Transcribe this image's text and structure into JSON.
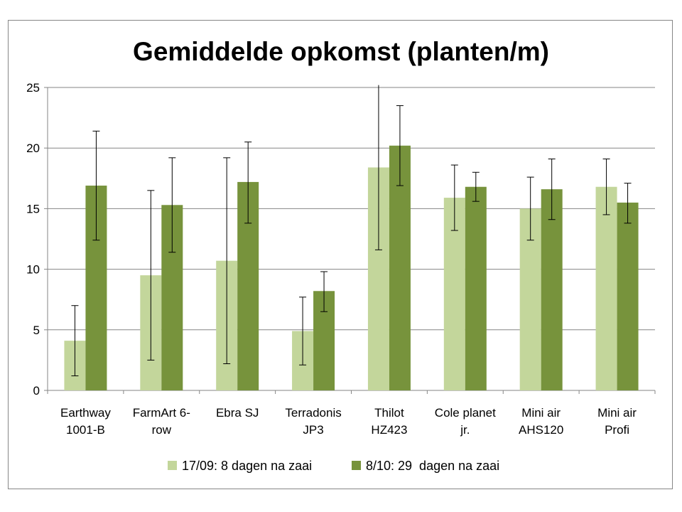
{
  "chart_data": {
    "type": "bar",
    "title": "Gemiddelde opkomst (planten/m)",
    "xlabel": "",
    "ylabel": "",
    "ylim": [
      0,
      25
    ],
    "yticks": [
      "0",
      "5",
      "10",
      "15",
      "20",
      "25"
    ],
    "ytick_values": [
      0,
      5,
      10,
      15,
      20,
      25
    ],
    "grid": true,
    "legend_position": "bottom",
    "categories": [
      [
        "Earthway",
        "1001-B"
      ],
      [
        "FarmArt 6-",
        "row"
      ],
      [
        "Ebra SJ"
      ],
      [
        "Terradonis",
        "JP3"
      ],
      [
        "Thilot",
        "HZ423"
      ],
      [
        "Cole planet",
        "jr."
      ],
      [
        "Mini air",
        "AHS120"
      ],
      [
        "Mini air",
        "Profi"
      ]
    ],
    "series": [
      {
        "name": "17/09: 8 dagen na zaai",
        "color": "#c3d69b",
        "values": [
          4.1,
          9.5,
          10.7,
          4.9,
          18.4,
          15.9,
          15.0,
          16.8
        ],
        "error_low": [
          1.2,
          2.5,
          2.2,
          2.1,
          11.6,
          13.2,
          12.4,
          14.5
        ],
        "error_high": [
          7.0,
          16.5,
          19.2,
          7.7,
          25.2,
          18.6,
          17.6,
          19.1
        ]
      },
      {
        "name": "8/10: 29  dagen na zaai",
        "color": "#77933c",
        "values": [
          16.9,
          15.3,
          17.2,
          8.2,
          20.2,
          16.8,
          16.6,
          15.5
        ],
        "error_low": [
          12.4,
          11.4,
          13.8,
          6.5,
          16.9,
          15.6,
          14.1,
          13.8
        ],
        "error_high": [
          21.4,
          19.2,
          20.5,
          9.8,
          23.5,
          18.0,
          19.1,
          17.1
        ]
      }
    ]
  }
}
